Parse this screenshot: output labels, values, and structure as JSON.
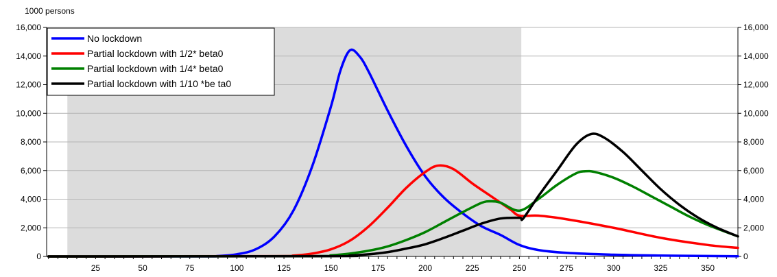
{
  "chart_data": {
    "type": "line",
    "unit_label": "1000 persons",
    "x_ticks": [
      25,
      50,
      75,
      100,
      125,
      150,
      175,
      200,
      225,
      250,
      275,
      300,
      325,
      350
    ],
    "x_range": [
      -1,
      366
    ],
    "y_ticks": [
      0,
      2000,
      4000,
      6000,
      8000,
      10000,
      12000,
      14000,
      16000
    ],
    "y_tick_labels": [
      "0",
      "2,000",
      "4,000",
      "6,000",
      "8,000",
      "10,000",
      "12,000",
      "14,000",
      "16,000"
    ],
    "ylim": [
      0,
      16000
    ],
    "grid": "horizontal",
    "legend_position": "top-left",
    "shaded_period": [
      10,
      251
    ],
    "shade_color": "#dcdcdc",
    "series": [
      {
        "name": "No lockdown",
        "color": "#0000ff",
        "points": [
          [
            0,
            0
          ],
          [
            80,
            5
          ],
          [
            90,
            30
          ],
          [
            100,
            150
          ],
          [
            110,
            500
          ],
          [
            120,
            1400
          ],
          [
            130,
            3200
          ],
          [
            140,
            6300
          ],
          [
            150,
            10500
          ],
          [
            155,
            13000
          ],
          [
            160,
            14400
          ],
          [
            165,
            14000
          ],
          [
            170,
            12900
          ],
          [
            180,
            10200
          ],
          [
            190,
            7700
          ],
          [
            200,
            5600
          ],
          [
            210,
            4100
          ],
          [
            220,
            3000
          ],
          [
            230,
            2100
          ],
          [
            240,
            1500
          ],
          [
            250,
            800
          ],
          [
            260,
            450
          ],
          [
            275,
            250
          ],
          [
            300,
            120
          ],
          [
            325,
            60
          ],
          [
            350,
            30
          ],
          [
            366,
            10
          ]
        ]
      },
      {
        "name": "Partial lockdown with 1/2* beta0",
        "color": "#ff0000",
        "points": [
          [
            0,
            0
          ],
          [
            120,
            20
          ],
          [
            130,
            60
          ],
          [
            140,
            200
          ],
          [
            150,
            500
          ],
          [
            160,
            1100
          ],
          [
            170,
            2100
          ],
          [
            180,
            3400
          ],
          [
            190,
            4800
          ],
          [
            200,
            5900
          ],
          [
            207,
            6350
          ],
          [
            215,
            6100
          ],
          [
            225,
            5100
          ],
          [
            235,
            4200
          ],
          [
            245,
            3300
          ],
          [
            250,
            2850
          ],
          [
            260,
            2850
          ],
          [
            275,
            2600
          ],
          [
            300,
            2000
          ],
          [
            325,
            1300
          ],
          [
            350,
            800
          ],
          [
            366,
            600
          ]
        ]
      },
      {
        "name": "Partial lockdown with 1/4* beta0",
        "color": "#008000",
        "points": [
          [
            0,
            0
          ],
          [
            140,
            20
          ],
          [
            150,
            80
          ],
          [
            160,
            200
          ],
          [
            170,
            400
          ],
          [
            180,
            700
          ],
          [
            190,
            1150
          ],
          [
            200,
            1700
          ],
          [
            210,
            2400
          ],
          [
            220,
            3100
          ],
          [
            230,
            3750
          ],
          [
            235,
            3850
          ],
          [
            240,
            3750
          ],
          [
            250,
            3200
          ],
          [
            260,
            4000
          ],
          [
            270,
            5000
          ],
          [
            280,
            5800
          ],
          [
            285,
            5950
          ],
          [
            290,
            5900
          ],
          [
            300,
            5500
          ],
          [
            310,
            4900
          ],
          [
            320,
            4200
          ],
          [
            330,
            3500
          ],
          [
            340,
            2800
          ],
          [
            350,
            2200
          ],
          [
            366,
            1400
          ]
        ]
      },
      {
        "name": "Partial lockdown with 1/10 *be ta0",
        "color": "#000000",
        "points": [
          [
            0,
            0
          ],
          [
            150,
            20
          ],
          [
            160,
            60
          ],
          [
            170,
            150
          ],
          [
            180,
            300
          ],
          [
            190,
            550
          ],
          [
            200,
            850
          ],
          [
            210,
            1300
          ],
          [
            220,
            1800
          ],
          [
            230,
            2300
          ],
          [
            240,
            2650
          ],
          [
            250,
            2700
          ],
          [
            252,
            2650
          ],
          [
            260,
            4200
          ],
          [
            270,
            6000
          ],
          [
            280,
            7800
          ],
          [
            288,
            8550
          ],
          [
            295,
            8300
          ],
          [
            305,
            7300
          ],
          [
            315,
            6000
          ],
          [
            325,
            4700
          ],
          [
            335,
            3600
          ],
          [
            345,
            2700
          ],
          [
            355,
            2000
          ],
          [
            366,
            1400
          ]
        ]
      }
    ]
  }
}
